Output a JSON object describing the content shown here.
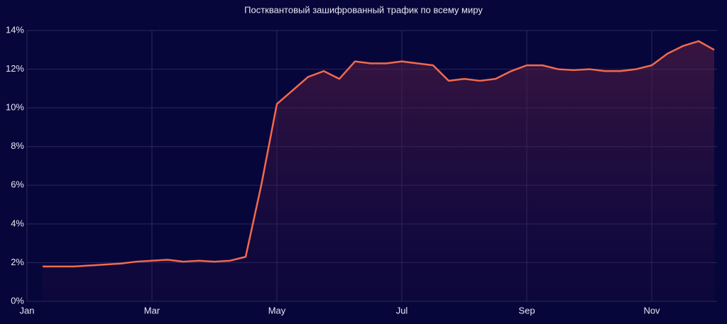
{
  "chart_data": {
    "type": "line",
    "title": "Постквантовый зашифрованный трафик по всему миру",
    "categories": [
      "Jan",
      null,
      null,
      null,
      null,
      null,
      null,
      null,
      "Mar",
      null,
      null,
      null,
      null,
      null,
      null,
      null,
      "May",
      null,
      null,
      null,
      null,
      null,
      null,
      null,
      "Jul",
      null,
      null,
      null,
      null,
      null,
      null,
      null,
      "Sep",
      null,
      null,
      null,
      null,
      null,
      null,
      null,
      "Nov",
      null,
      null,
      null,
      null
    ],
    "values": [
      null,
      1.8,
      1.8,
      1.8,
      1.85,
      1.9,
      1.95,
      2.05,
      2.1,
      2.15,
      2.05,
      2.1,
      2.05,
      2.1,
      2.3,
      6.0,
      10.2,
      10.9,
      11.6,
      11.9,
      11.5,
      12.4,
      12.3,
      12.3,
      12.4,
      12.3,
      12.2,
      11.4,
      11.5,
      11.4,
      11.5,
      11.9,
      12.2,
      12.2,
      12.0,
      11.95,
      12.0,
      11.9,
      11.9,
      12.0,
      12.2,
      12.8,
      13.2,
      13.45,
      13.0
    ],
    "color": "#f26a4b",
    "ylim": [
      0,
      14
    ],
    "yticks": [
      {
        "value": 0,
        "label": "0%"
      },
      {
        "value": 2,
        "label": "2%"
      },
      {
        "value": 4,
        "label": "4%"
      },
      {
        "value": 6,
        "label": "6%"
      },
      {
        "value": 8,
        "label": "8%"
      },
      {
        "value": 10,
        "label": "10%"
      },
      {
        "value": 12,
        "label": "12%"
      },
      {
        "value": 14,
        "label": "14%"
      }
    ],
    "grid": true
  }
}
